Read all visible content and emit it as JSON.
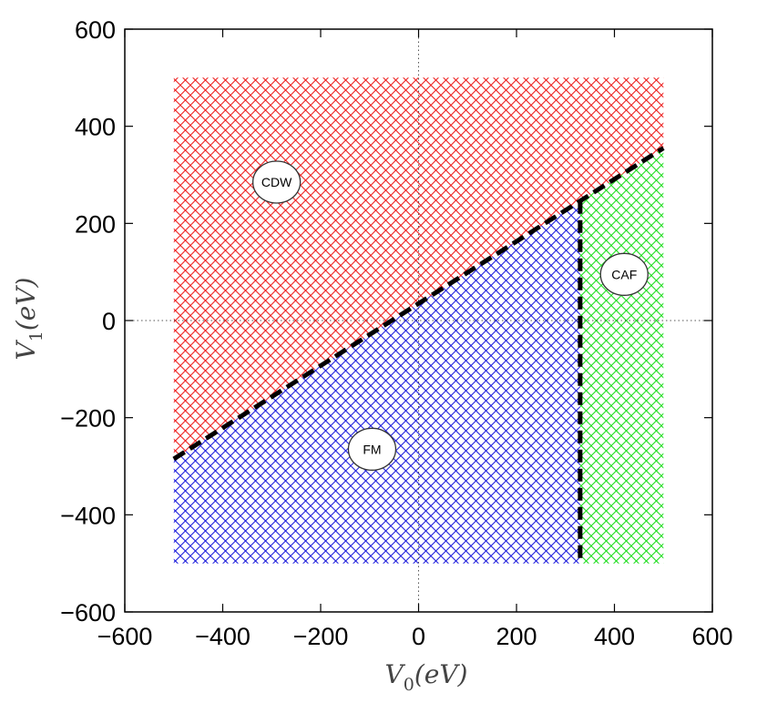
{
  "chart_data": {
    "type": "scatter",
    "title": "",
    "xlabel": "V_0(eV)",
    "ylabel": "V_1(eV)",
    "xlabel_parts": {
      "main": "V",
      "sub": "0",
      "rest": "(eV)"
    },
    "ylabel_parts": {
      "main": "V",
      "sub": "1",
      "rest": "(eV)"
    },
    "xlim": [
      -600,
      600
    ],
    "ylim": [
      -600,
      600
    ],
    "xticks": [
      -600,
      -400,
      -200,
      0,
      200,
      400,
      600
    ],
    "yticks": [
      -600,
      -400,
      -200,
      0,
      200,
      400,
      600
    ],
    "xtick_labels": [
      "−600",
      "−400",
      "−200",
      "0",
      "200",
      "400",
      "600"
    ],
    "ytick_labels": [
      "−600",
      "−400",
      "−200",
      "0",
      "200",
      "400",
      "600"
    ],
    "zero_lines": "dotted",
    "grid": false,
    "domain": {
      "x": [
        -500,
        500
      ],
      "y": [
        -500,
        500
      ]
    },
    "regions": [
      {
        "name": "CDW",
        "color": "#ee2222",
        "label_at": [
          -290,
          285
        ]
      },
      {
        "name": "FM",
        "color": "#2222dd",
        "label_at": [
          -95,
          -265
        ]
      },
      {
        "name": "CAF",
        "color": "#22dd22",
        "label_at": [
          420,
          95
        ]
      }
    ],
    "boundaries": [
      {
        "name": "CDW-FM/CAF boundary",
        "style": "dashed",
        "color": "#000000",
        "points": [
          [
            -500,
            -285
          ],
          [
            500,
            355
          ]
        ]
      },
      {
        "name": "FM-CAF boundary",
        "style": "dashed",
        "color": "#000000",
        "points": [
          [
            330,
            246
          ],
          [
            330,
            -500
          ]
        ]
      }
    ]
  }
}
